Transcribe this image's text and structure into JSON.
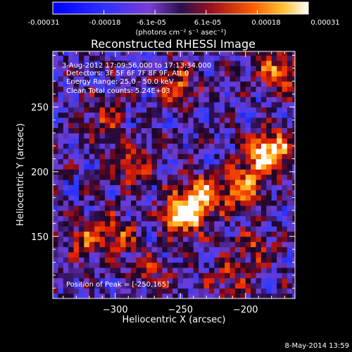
{
  "colorbar": {
    "ticks": [
      "-0.00031",
      "-0.00018",
      "-6.1e-05",
      "6.1e-05",
      "0.00018",
      "0.00031"
    ],
    "units_label": "(photons cm⁻² s⁻¹ asec⁻²)",
    "range": [
      -0.00031,
      0.00031
    ]
  },
  "chart_data": {
    "type": "heatmap",
    "title": "Reconstructed RHESSI Image",
    "xlabel": "Heliocentric X (arcsec)",
    "ylabel": "Heliocentric Y (arcsec)",
    "xlim": [
      -348,
      -162
    ],
    "ylim": [
      102,
      293
    ],
    "xticks": [
      {
        "value": -300,
        "label": "−300"
      },
      {
        "value": -250,
        "label": "−250"
      },
      {
        "value": -200,
        "label": "−200"
      }
    ],
    "yticks": [
      {
        "value": 150,
        "label": "150"
      },
      {
        "value": 200,
        "label": "200"
      },
      {
        "value": 250,
        "label": "250"
      }
    ],
    "sources": [
      {
        "x": -250,
        "y": 165,
        "strength": 1.0
      },
      {
        "x": -235,
        "y": 180,
        "strength": 0.75
      },
      {
        "x": -205,
        "y": 185,
        "strength": 0.65
      },
      {
        "x": -190,
        "y": 210,
        "strength": 0.7
      },
      {
        "x": -178,
        "y": 215,
        "strength": 0.55
      },
      {
        "x": -290,
        "y": 205,
        "strength": 0.55
      },
      {
        "x": -255,
        "y": 265,
        "strength": 0.55
      },
      {
        "x": -175,
        "y": 275,
        "strength": 0.7
      },
      {
        "x": -325,
        "y": 145,
        "strength": 0.5
      },
      {
        "x": -300,
        "y": 150,
        "strength": 0.45
      },
      {
        "x": -310,
        "y": 240,
        "strength": 0.4
      },
      {
        "x": -275,
        "y": 120,
        "strength": 0.35
      },
      {
        "x": -195,
        "y": 140,
        "strength": 0.4
      },
      {
        "x": -215,
        "y": 115,
        "strength": 0.35
      }
    ],
    "annotations": {
      "time": "3-Aug-2012 17:09:56.000 to 17:13:34.000",
      "detectors": "Detectors: 3F 5F 6F 7F 8F 9F, Att 0",
      "energy": "Energy Range: 25.0 - 50.0 keV",
      "method": "Clean     Total counts: 5.24E+03",
      "peak": "Position of Peak = [-250,165]"
    }
  },
  "footer": {
    "timestamp": "8-May-2014 13:59"
  }
}
